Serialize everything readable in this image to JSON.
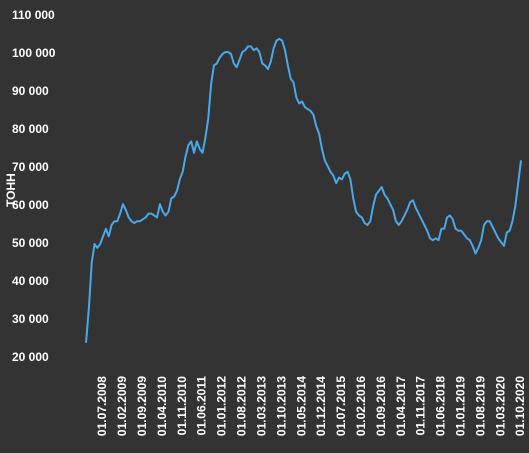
{
  "chart_data": {
    "type": "line",
    "y_label": "ТОНН",
    "color": "#4aa8ea",
    "grid": false,
    "ylim": [
      20000,
      110000
    ],
    "yticks": [
      {
        "value": 20000,
        "label": "20 000"
      },
      {
        "value": 30000,
        "label": "30 000"
      },
      {
        "value": 40000,
        "label": "40 000"
      },
      {
        "value": 50000,
        "label": "50 000"
      },
      {
        "value": 60000,
        "label": "60 000"
      },
      {
        "value": 70000,
        "label": "70 000"
      },
      {
        "value": 80000,
        "label": "80 000"
      },
      {
        "value": 90000,
        "label": "90 000"
      },
      {
        "value": 100000,
        "label": "100 000"
      },
      {
        "value": 110000,
        "label": "110 000"
      }
    ],
    "categories": [
      null,
      null,
      null,
      null,
      null,
      null,
      "01.07.2008",
      null,
      null,
      null,
      null,
      null,
      null,
      "01.02.2009",
      null,
      null,
      null,
      null,
      null,
      null,
      "01.09.2009",
      null,
      null,
      null,
      null,
      null,
      null,
      "01.04.2010",
      null,
      null,
      null,
      null,
      null,
      null,
      "01.11.2010",
      null,
      null,
      null,
      null,
      null,
      null,
      "01.06.2011",
      null,
      null,
      null,
      null,
      null,
      null,
      "01.01.2012",
      null,
      null,
      null,
      null,
      null,
      null,
      "01.08.2012",
      null,
      null,
      null,
      null,
      null,
      null,
      "01.03.2013",
      null,
      null,
      null,
      null,
      null,
      null,
      "01.10.2013",
      null,
      null,
      null,
      null,
      null,
      null,
      "01.05.2014",
      null,
      null,
      null,
      null,
      null,
      null,
      "01.12.2014",
      null,
      null,
      null,
      null,
      null,
      null,
      "01.07.2015",
      null,
      null,
      null,
      null,
      null,
      null,
      "01.02.2016",
      null,
      null,
      null,
      null,
      null,
      null,
      "01.09.2016",
      null,
      null,
      null,
      null,
      null,
      null,
      "01.04.2017",
      null,
      null,
      null,
      null,
      null,
      null,
      "01.11.2017",
      null,
      null,
      null,
      null,
      null,
      null,
      "01.06.2018",
      null,
      null,
      null,
      null,
      null,
      null,
      "01.01.2019",
      null,
      null,
      null,
      null,
      null,
      null,
      "01.08.2019",
      null,
      null,
      null,
      null,
      null,
      null,
      "01.03.2020",
      null,
      null,
      null,
      null,
      null,
      null,
      "01.10.2020"
    ],
    "values": [
      24000,
      33000,
      45000,
      50000,
      49000,
      50000,
      52000,
      54000,
      52000,
      55000,
      56000,
      56000,
      58000,
      60500,
      59000,
      57000,
      56000,
      55500,
      56000,
      56000,
      56500,
      57000,
      58000,
      58000,
      57500,
      57000,
      60500,
      58500,
      57500,
      58500,
      62000,
      62500,
      64000,
      67000,
      69000,
      73000,
      76000,
      77000,
      74000,
      77000,
      75000,
      74000,
      78000,
      83000,
      92000,
      97000,
      97500,
      99000,
      100000,
      100500,
      100500,
      100000,
      97500,
      96500,
      98500,
      100500,
      101000,
      102000,
      102000,
      101000,
      101500,
      100500,
      97500,
      97000,
      96000,
      98000,
      101500,
      103500,
      104000,
      103500,
      101000,
      97000,
      93500,
      92500,
      88500,
      87000,
      87500,
      86000,
      85500,
      85000,
      84000,
      81000,
      79000,
      75000,
      72000,
      70500,
      69000,
      68000,
      66000,
      67500,
      67000,
      68500,
      69000,
      67000,
      62000,
      58500,
      57500,
      57000,
      55500,
      55000,
      56000,
      60000,
      63000,
      64000,
      65000,
      63000,
      62000,
      60500,
      59000,
      56000,
      55000,
      56000,
      57500,
      59000,
      61000,
      61500,
      59500,
      58000,
      56500,
      55000,
      53500,
      51500,
      51000,
      51500,
      51000,
      54000,
      54000,
      57000,
      57500,
      56500,
      54000,
      53500,
      53500,
      52500,
      51500,
      51000,
      49500,
      47500,
      49000,
      51000,
      55000,
      56000,
      56000,
      54500,
      53000,
      51500,
      50500,
      49500,
      53000,
      53500,
      56000,
      60000,
      66000,
      72000
    ]
  }
}
